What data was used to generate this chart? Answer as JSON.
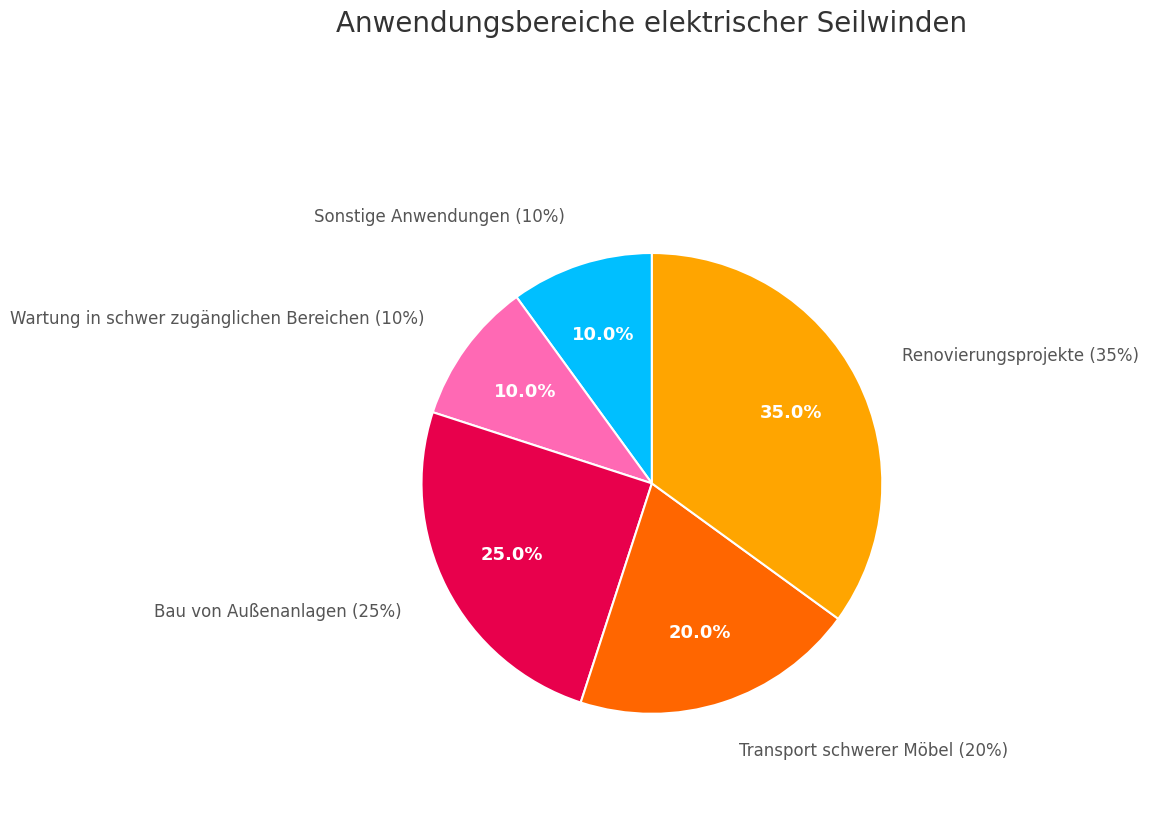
{
  "title": "Anwendungsbereiche elektrischer Seilwinden",
  "slices": [
    {
      "label": "Sonstige Anwendungen (10%)",
      "value": 10,
      "color": "#00BFFF"
    },
    {
      "label": "Wartung in schwer zugänglichen Bereichen (10%)",
      "value": 10,
      "color": "#FF69B4"
    },
    {
      "label": "Bau von Außenanlagen (25%)",
      "value": 25,
      "color": "#E8004C"
    },
    {
      "label": "Transport schwerer Möbel (20%)",
      "value": 20,
      "color": "#FF6600"
    },
    {
      "label": "Renovierungsprojekte (35%)",
      "value": 35,
      "color": "#FFA500"
    }
  ],
  "title_fontsize": 20,
  "label_fontsize": 12,
  "autopct_fontsize": 13,
  "background_color": "#FFFFFF",
  "text_color": "#555555",
  "startangle": 90
}
